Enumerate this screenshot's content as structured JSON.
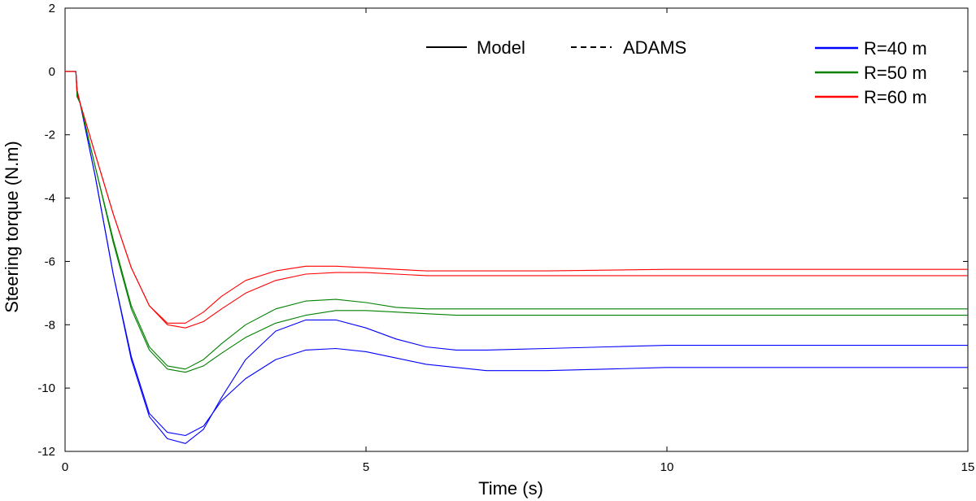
{
  "chart_data": {
    "type": "line",
    "title": "",
    "xlabel": "Time (s)",
    "ylabel": "Steering torque (N.m)",
    "xlim": [
      0,
      15
    ],
    "ylim": [
      -12,
      2
    ],
    "x_ticks": [
      0,
      5,
      10,
      15
    ],
    "y_ticks": [
      2,
      0,
      -2,
      -4,
      -6,
      -8,
      -10,
      -12
    ],
    "grid": false,
    "style_legend": [
      {
        "label": "Model",
        "dash": "solid"
      },
      {
        "label": "ADAMS",
        "dash": "dashed"
      }
    ],
    "series": [
      {
        "name": "R=40 m",
        "source": "Model",
        "color": "#0000ff",
        "x": [
          0,
          0.18,
          0.2,
          0.25,
          0.5,
          0.8,
          1.1,
          1.4,
          1.7,
          2.0,
          2.3,
          2.6,
          3.0,
          3.5,
          4.0,
          4.5,
          5.0,
          5.5,
          6.0,
          6.5,
          7.0,
          8.0,
          9.0,
          10.0,
          12.0,
          15.0
        ],
        "y": [
          0,
          0,
          -0.7,
          -1.0,
          -3.3,
          -6.4,
          -9.0,
          -10.8,
          -11.4,
          -11.5,
          -11.2,
          -10.4,
          -9.7,
          -9.1,
          -8.8,
          -8.75,
          -8.85,
          -9.05,
          -9.25,
          -9.35,
          -9.45,
          -9.45,
          -9.4,
          -9.35,
          -9.35,
          -9.35
        ]
      },
      {
        "name": "R=40 m",
        "source": "ADAMS",
        "color": "#0000ff",
        "x": [
          0,
          0.18,
          0.2,
          0.25,
          0.5,
          0.8,
          1.1,
          1.4,
          1.7,
          2.0,
          2.3,
          2.6,
          3.0,
          3.5,
          4.0,
          4.5,
          5.0,
          5.5,
          6.0,
          6.5,
          7.0,
          8.0,
          9.0,
          10.0,
          12.0,
          15.0
        ],
        "y": [
          0,
          0,
          -0.6,
          -1.0,
          -3.3,
          -6.4,
          -9.1,
          -10.9,
          -11.6,
          -11.75,
          -11.3,
          -10.3,
          -9.1,
          -8.2,
          -7.85,
          -7.85,
          -8.1,
          -8.45,
          -8.7,
          -8.8,
          -8.8,
          -8.75,
          -8.7,
          -8.65,
          -8.65,
          -8.65
        ]
      },
      {
        "name": "R=50 m",
        "source": "Model",
        "color": "#008000",
        "x": [
          0,
          0.18,
          0.2,
          0.25,
          0.5,
          0.8,
          1.1,
          1.4,
          1.7,
          2.0,
          2.3,
          2.6,
          3.0,
          3.5,
          4.0,
          4.5,
          5.0,
          5.5,
          6.0,
          6.5,
          7.0,
          8.0,
          10.0,
          12.0,
          15.0
        ],
        "y": [
          0,
          0,
          -0.8,
          -1.0,
          -3.0,
          -5.4,
          -7.5,
          -8.8,
          -9.4,
          -9.5,
          -9.3,
          -8.9,
          -8.4,
          -7.95,
          -7.7,
          -7.55,
          -7.55,
          -7.6,
          -7.65,
          -7.7,
          -7.7,
          -7.7,
          -7.7,
          -7.7,
          -7.7
        ]
      },
      {
        "name": "R=50 m",
        "source": "ADAMS",
        "color": "#008000",
        "x": [
          0,
          0.18,
          0.2,
          0.25,
          0.5,
          0.8,
          1.1,
          1.4,
          1.7,
          2.0,
          2.3,
          2.6,
          3.0,
          3.5,
          4.0,
          4.5,
          5.0,
          5.5,
          6.0,
          6.5,
          7.0,
          8.0,
          10.0,
          12.0,
          15.0
        ],
        "y": [
          0,
          0,
          -0.8,
          -1.0,
          -3.0,
          -5.3,
          -7.4,
          -8.7,
          -9.3,
          -9.4,
          -9.1,
          -8.6,
          -8.0,
          -7.5,
          -7.25,
          -7.2,
          -7.3,
          -7.45,
          -7.5,
          -7.5,
          -7.5,
          -7.5,
          -7.5,
          -7.5,
          -7.5
        ]
      },
      {
        "name": "R=60 m",
        "source": "Model",
        "color": "#ff0000",
        "x": [
          0,
          0.18,
          0.2,
          0.25,
          0.5,
          0.8,
          1.1,
          1.4,
          1.7,
          2.0,
          2.3,
          2.6,
          3.0,
          3.5,
          4.0,
          4.5,
          5.0,
          5.5,
          6.0,
          7.0,
          8.0,
          10.0,
          12.0,
          15.0
        ],
        "y": [
          0,
          0,
          -0.6,
          -1.0,
          -2.6,
          -4.5,
          -6.2,
          -7.4,
          -8.0,
          -8.1,
          -7.9,
          -7.5,
          -7.0,
          -6.6,
          -6.4,
          -6.35,
          -6.35,
          -6.4,
          -6.45,
          -6.45,
          -6.45,
          -6.45,
          -6.45,
          -6.45
        ]
      },
      {
        "name": "R=60 m",
        "source": "ADAMS",
        "color": "#ff0000",
        "x": [
          0,
          0.18,
          0.2,
          0.25,
          0.5,
          0.8,
          1.1,
          1.4,
          1.7,
          2.0,
          2.3,
          2.6,
          3.0,
          3.5,
          4.0,
          4.5,
          5.0,
          5.5,
          6.0,
          7.0,
          8.0,
          10.0,
          12.0,
          15.0
        ],
        "y": [
          0,
          0,
          -0.6,
          -1.0,
          -2.6,
          -4.5,
          -6.2,
          -7.4,
          -7.95,
          -7.95,
          -7.6,
          -7.1,
          -6.6,
          -6.3,
          -6.15,
          -6.15,
          -6.2,
          -6.25,
          -6.3,
          -6.3,
          -6.3,
          -6.25,
          -6.25,
          -6.25
        ]
      }
    ]
  }
}
